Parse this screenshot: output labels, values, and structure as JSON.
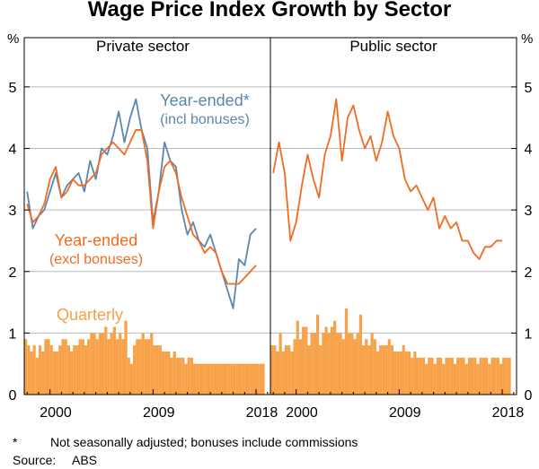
{
  "chart_data": {
    "type": "line+bar",
    "title": "Wage Price Index Growth by Sector",
    "unit_left": "%",
    "unit_right": "%",
    "y_ticks": [
      0,
      1,
      2,
      3,
      4,
      5
    ],
    "ylim": [
      0,
      5.8
    ],
    "x_range": [
      1997.75,
      2019.25
    ],
    "x_ticks": [
      2000,
      2009,
      2018
    ],
    "x_tick_labels": [
      "2000",
      "2009",
      "2018"
    ],
    "colors": {
      "year_ended_incl": "#5b86ad",
      "year_ended_excl": "#f26b21",
      "quarterly": "#f7a148"
    },
    "panels": [
      {
        "name": "Private sector",
        "series": [
          {
            "name": "Year-ended*",
            "sublabel": "(incl bonuses)",
            "x": [
              1998.0,
              1998.5,
              1999.0,
              1999.5,
              2000.0,
              2000.5,
              2001.0,
              2001.5,
              2002.0,
              2002.5,
              2003.0,
              2003.5,
              2004.0,
              2004.5,
              2005.0,
              2005.5,
              2006.0,
              2006.5,
              2007.0,
              2007.5,
              2008.0,
              2008.5,
              2009.0,
              2009.5,
              2010.0,
              2010.5,
              2011.0,
              2011.5,
              2012.0,
              2012.5,
              2013.0,
              2013.5,
              2014.0,
              2014.5,
              2015.0,
              2015.5,
              2016.0,
              2016.5,
              2017.0,
              2017.5,
              2018.0
            ],
            "values": [
              3.3,
              2.7,
              2.9,
              3.0,
              3.3,
              3.6,
              3.2,
              3.4,
              3.5,
              3.6,
              3.3,
              3.8,
              3.5,
              4.0,
              3.9,
              4.2,
              4.6,
              4.1,
              4.5,
              4.8,
              4.3,
              4.0,
              2.8,
              3.3,
              4.1,
              3.8,
              3.7,
              3.0,
              2.6,
              2.8,
              2.5,
              2.4,
              2.6,
              2.3,
              2.0,
              1.7,
              1.4,
              2.2,
              2.1,
              2.6,
              2.7
            ]
          },
          {
            "name": "Year-ended",
            "sublabel": "(excl bonuses)",
            "x": [
              1998.0,
              1998.5,
              1999.0,
              1999.5,
              2000.0,
              2000.5,
              2001.0,
              2001.5,
              2002.0,
              2002.5,
              2003.0,
              2003.5,
              2004.0,
              2004.5,
              2005.0,
              2005.5,
              2006.0,
              2006.5,
              2007.0,
              2007.5,
              2008.0,
              2008.5,
              2009.0,
              2009.5,
              2010.0,
              2010.5,
              2011.0,
              2011.5,
              2012.0,
              2012.5,
              2013.0,
              2013.5,
              2014.0,
              2014.5,
              2015.0,
              2015.5,
              2016.0,
              2016.5,
              2017.0,
              2017.5,
              2018.0
            ],
            "values": [
              3.1,
              2.8,
              2.9,
              3.1,
              3.5,
              3.7,
              3.2,
              3.3,
              3.5,
              3.4,
              3.4,
              3.5,
              3.6,
              3.9,
              4.0,
              4.1,
              4.0,
              3.9,
              4.1,
              4.3,
              4.3,
              3.8,
              2.7,
              3.3,
              3.7,
              3.8,
              3.6,
              3.2,
              2.9,
              2.6,
              2.5,
              2.3,
              2.4,
              2.3,
              2.0,
              1.8,
              1.8,
              1.8,
              1.9,
              2.0,
              2.1
            ]
          },
          {
            "name": "Quarterly",
            "start": 1997.75,
            "step": 0.25,
            "values": [
              0.9,
              0.8,
              0.7,
              0.8,
              0.6,
              0.8,
              0.7,
              0.9,
              0.9,
              0.8,
              0.7,
              0.7,
              0.8,
              0.9,
              0.9,
              0.8,
              0.7,
              0.8,
              0.8,
              0.9,
              0.9,
              0.8,
              0.9,
              1.0,
              1.0,
              0.9,
              1.0,
              1.0,
              1.1,
              0.9,
              1.0,
              1.1,
              0.9,
              1.0,
              0.9,
              1.2,
              0.6,
              0.5,
              0.8,
              0.9,
              0.9,
              1.0,
              0.9,
              0.9,
              1.0,
              0.8,
              0.8,
              0.8,
              0.7,
              0.7,
              0.7,
              0.6,
              0.7,
              0.6,
              0.6,
              0.6,
              0.5,
              0.6,
              0.6,
              0.5,
              0.5,
              0.5,
              0.5,
              0.5,
              0.5,
              0.5,
              0.5,
              0.5,
              0.5,
              0.5,
              0.5,
              0.5,
              0.5,
              0.5,
              0.5,
              0.5,
              0.5,
              0.5,
              0.5,
              0.5,
              0.5,
              0.5,
              0.5,
              0.5
            ]
          }
        ]
      },
      {
        "name": "Public sector",
        "series": [
          {
            "name": "Year-ended",
            "x": [
              1998.0,
              1998.5,
              1999.0,
              1999.5,
              2000.0,
              2000.5,
              2001.0,
              2001.5,
              2002.0,
              2002.5,
              2003.0,
              2003.5,
              2004.0,
              2004.5,
              2005.0,
              2005.5,
              2006.0,
              2006.5,
              2007.0,
              2007.5,
              2008.0,
              2008.5,
              2009.0,
              2009.5,
              2010.0,
              2010.5,
              2011.0,
              2011.5,
              2012.0,
              2012.5,
              2013.0,
              2013.5,
              2014.0,
              2014.5,
              2015.0,
              2015.5,
              2016.0,
              2016.5,
              2017.0,
              2017.5,
              2018.0
            ],
            "values": [
              3.6,
              4.1,
              3.6,
              2.5,
              2.8,
              3.4,
              3.9,
              3.5,
              3.2,
              3.9,
              4.2,
              4.8,
              3.8,
              4.5,
              4.7,
              4.3,
              4.0,
              4.2,
              3.8,
              4.1,
              4.6,
              4.2,
              4.0,
              3.5,
              3.3,
              3.4,
              3.2,
              3.0,
              3.2,
              2.7,
              2.9,
              2.7,
              2.8,
              2.5,
              2.5,
              2.3,
              2.2,
              2.4,
              2.4,
              2.5,
              2.5
            ]
          },
          {
            "name": "Quarterly",
            "start": 1997.75,
            "step": 0.25,
            "values": [
              0.8,
              0.8,
              0.7,
              1.0,
              0.7,
              0.8,
              0.8,
              0.7,
              0.9,
              1.2,
              0.9,
              1.1,
              1.1,
              0.8,
              1.0,
              1.0,
              1.3,
              0.8,
              1.0,
              1.1,
              1.0,
              1.1,
              1.2,
              1.0,
              1.0,
              0.9,
              1.4,
              1.0,
              1.0,
              0.9,
              1.0,
              1.3,
              0.8,
              0.9,
              0.8,
              1.0,
              0.9,
              0.7,
              0.8,
              0.8,
              0.8,
              0.9,
              0.8,
              0.7,
              0.7,
              0.7,
              0.8,
              0.7,
              0.7,
              0.6,
              0.7,
              0.6,
              0.6,
              0.6,
              0.5,
              0.6,
              0.6,
              0.5,
              0.6,
              0.6,
              0.5,
              0.6,
              0.6,
              0.6,
              0.5,
              0.6,
              0.6,
              0.6,
              0.5,
              0.6,
              0.6,
              0.6,
              0.5,
              0.6,
              0.6,
              0.6,
              0.5,
              0.6,
              0.6,
              0.6,
              0.5,
              0.6,
              0.6,
              0.6
            ]
          }
        ]
      }
    ],
    "annotations": {
      "year_ended_incl": "Year-ended*",
      "year_ended_incl_sub": "(incl bonuses)",
      "year_ended_excl": "Year-ended",
      "year_ended_excl_sub": "(excl bonuses)",
      "quarterly": "Quarterly"
    },
    "footnote_mark": "*",
    "footnote_text": "Not seasonally adjusted; bonuses include commissions",
    "source_label": "Source:",
    "source_value": "ABS"
  }
}
